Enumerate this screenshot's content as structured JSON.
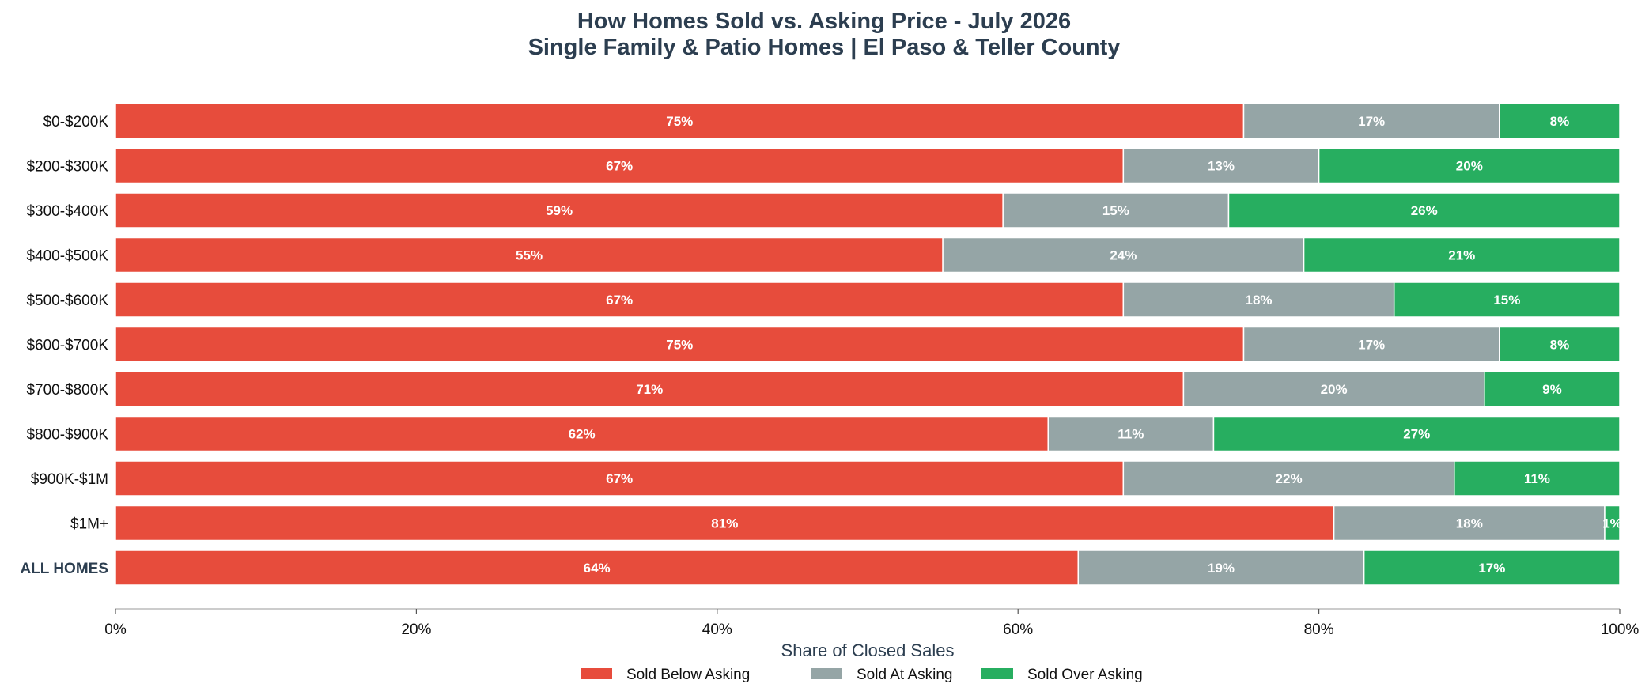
{
  "chart_data": {
    "type": "bar",
    "orientation": "horizontal",
    "stacked": true,
    "title": "How Homes Sold vs. Asking Price - July 2026",
    "subtitle": "Single Family & Patio Homes | El Paso & Teller County",
    "xlabel": "Share of Closed Sales",
    "ylabel": "",
    "xlim": [
      0,
      100
    ],
    "xticks": [
      "0%",
      "20%",
      "40%",
      "60%",
      "80%",
      "100%"
    ],
    "categories": [
      "$0-$200K",
      "$200-$300K",
      "$300-$400K",
      "$400-$500K",
      "$500-$600K",
      "$600-$700K",
      "$700-$800K",
      "$800-$900K",
      "$900K-$1M",
      "$1M+",
      "ALL HOMES"
    ],
    "bold_category": "ALL HOMES",
    "series": [
      {
        "name": "Sold Below Asking",
        "color": "#e74c3c",
        "values": [
          75,
          67,
          59,
          55,
          67,
          75,
          71,
          62,
          67,
          81,
          64
        ],
        "labels": [
          "75%",
          "67%",
          "59%",
          "55%",
          "67%",
          "75%",
          "71%",
          "62%",
          "67%",
          "81%",
          "64%"
        ]
      },
      {
        "name": "Sold At Asking",
        "color": "#95a5a6",
        "values": [
          17,
          13,
          15,
          24,
          18,
          17,
          20,
          11,
          22,
          18,
          19
        ],
        "labels": [
          "17%",
          "13%",
          "15%",
          "24%",
          "18%",
          "17%",
          "20%",
          "11%",
          "22%",
          "18%",
          "19%"
        ]
      },
      {
        "name": "Sold Over Asking",
        "color": "#27ae60",
        "values": [
          8,
          20,
          26,
          21,
          15,
          8,
          9,
          27,
          11,
          1,
          17
        ],
        "labels": [
          "8%",
          "20%",
          "26%",
          "21%",
          "15%",
          "8%",
          "9%",
          "27%",
          "11%",
          "1%",
          "17%"
        ]
      }
    ],
    "legend_position": "bottom-center",
    "grid": false
  }
}
